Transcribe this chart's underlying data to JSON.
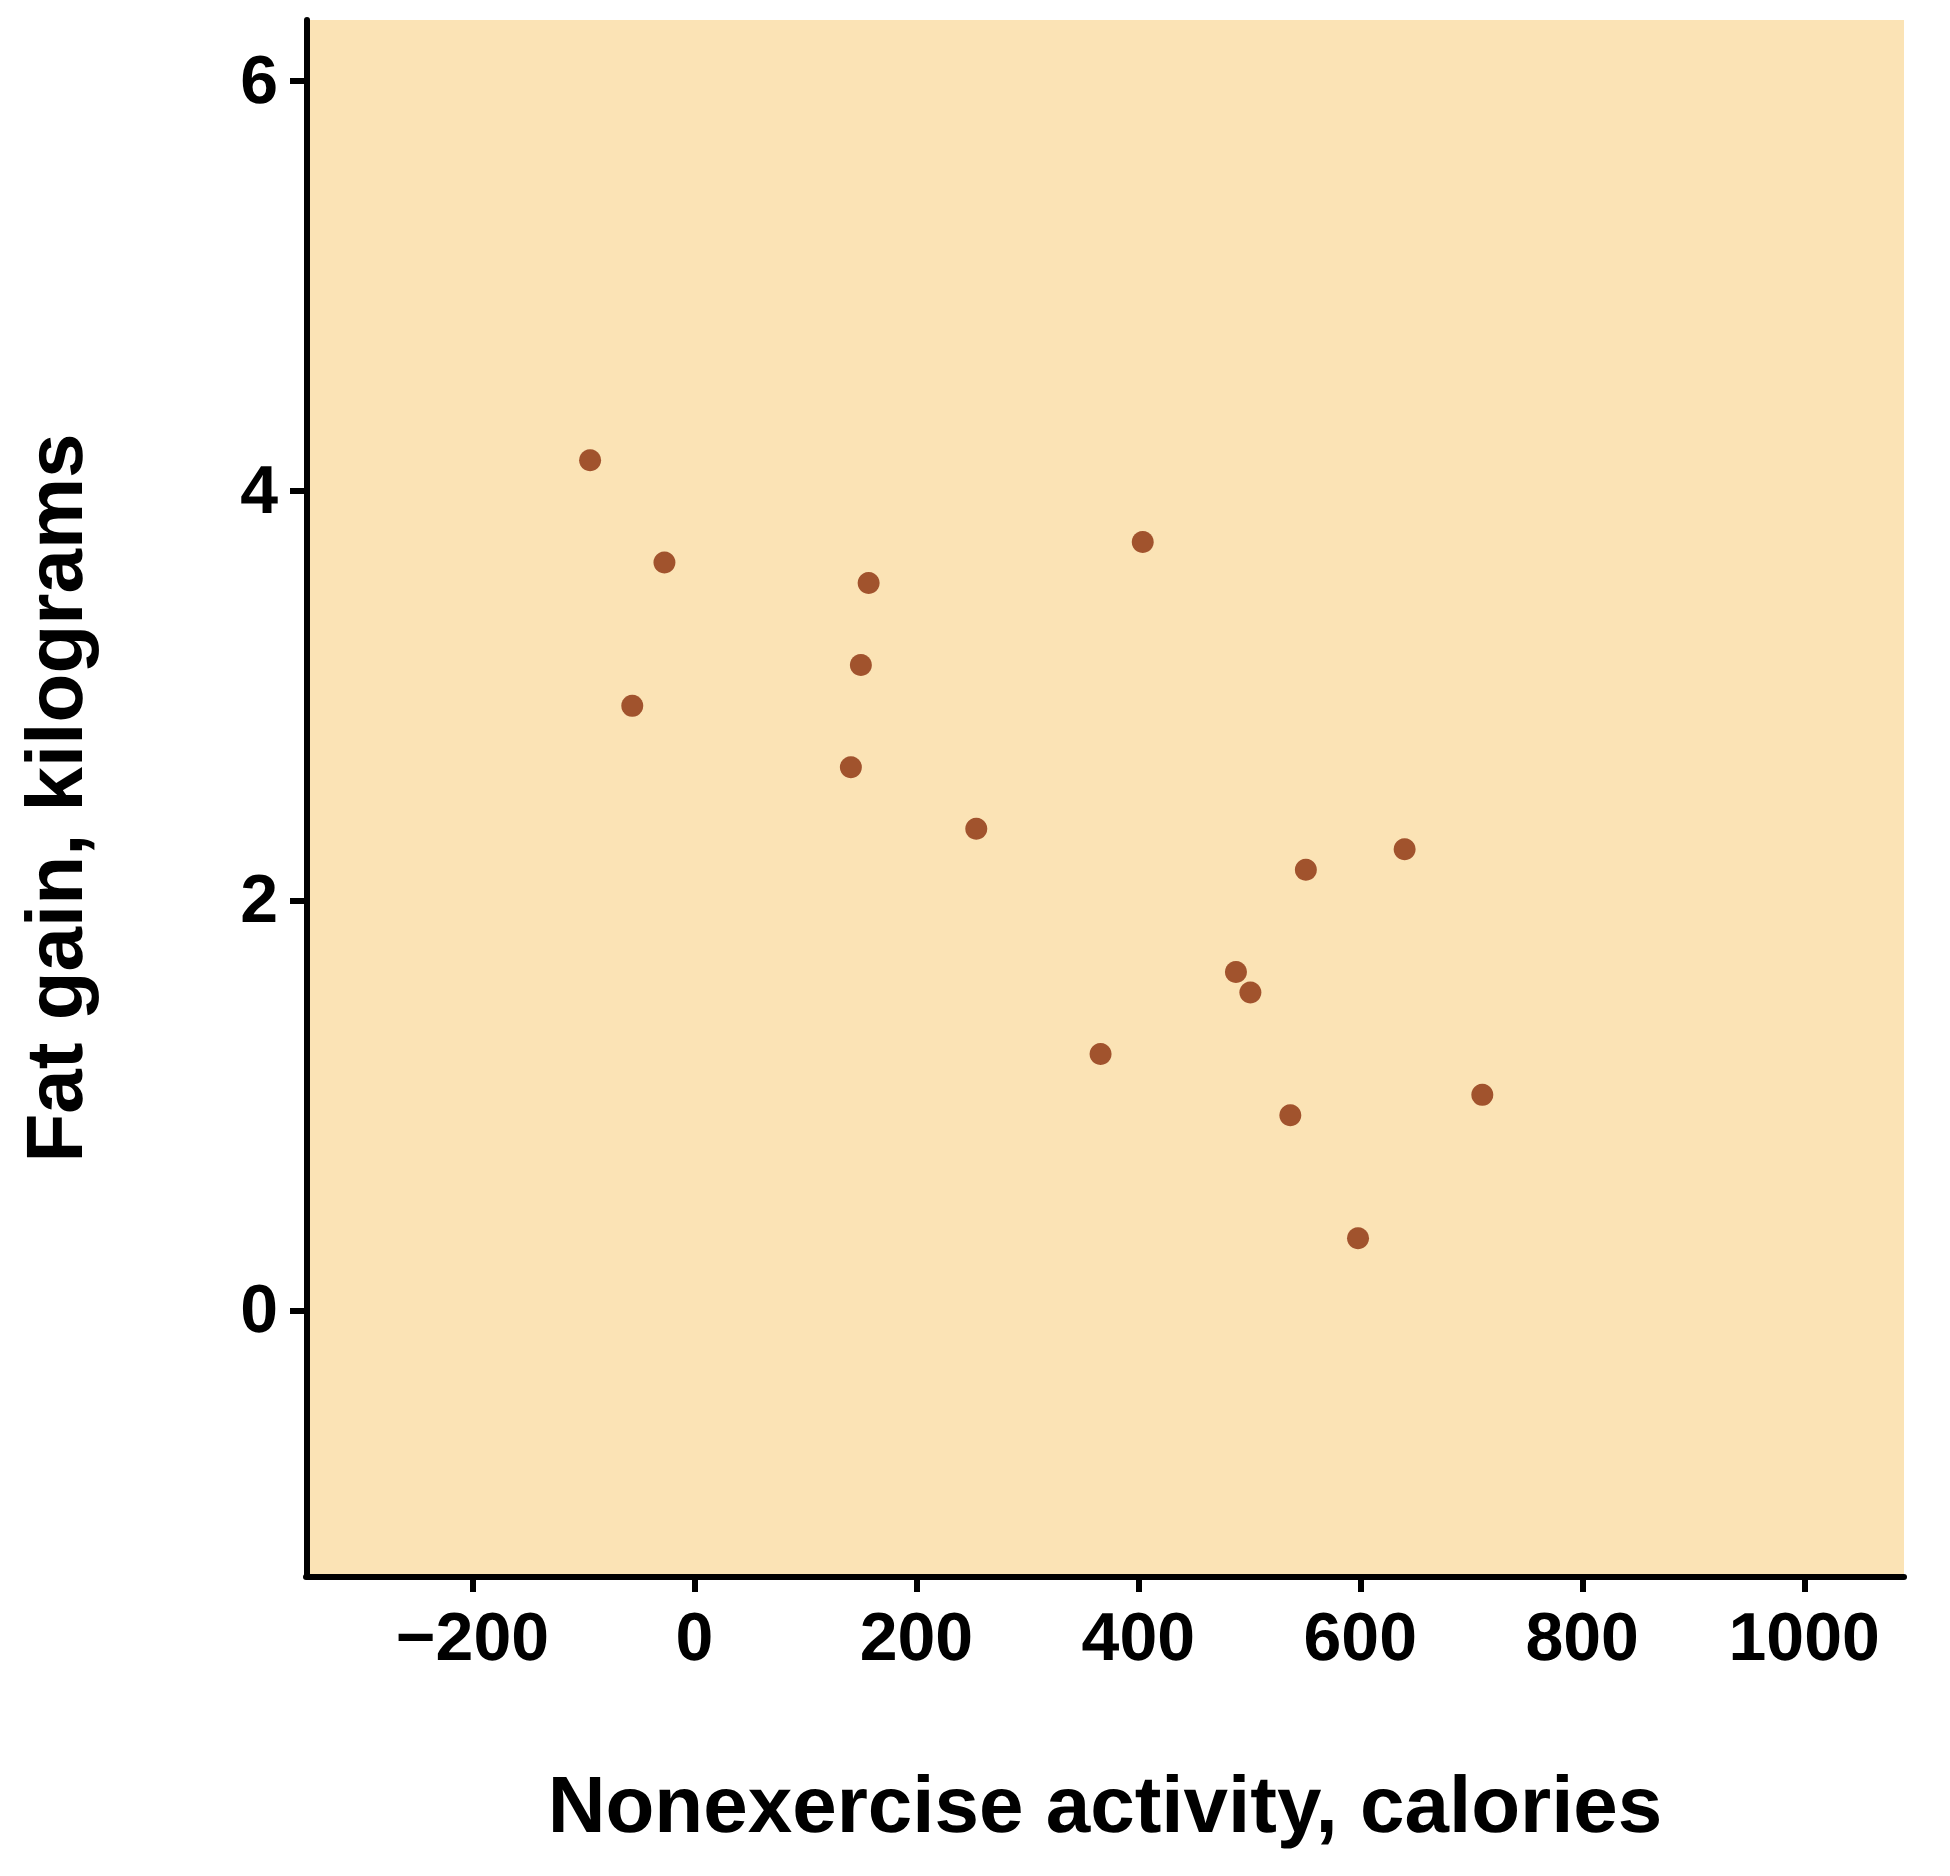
{
  "chart_data": {
    "type": "scatter",
    "xlabel": "Nonexercise activity, calories",
    "ylabel": "Fat gain, kilograms",
    "x": [
      -94,
      -27,
      -56,
      157,
      150,
      141,
      254,
      404,
      366,
      488,
      501,
      551,
      640,
      537,
      598,
      710
    ],
    "series": [
      {
        "color": "#8b2e0b",
        "values": [
          4.15,
          3.65,
          2.95,
          3.55,
          3.15,
          2.65,
          2.35,
          3.75,
          1.25,
          1.65,
          1.55,
          2.15,
          2.25,
          0.95,
          0.35,
          1.05
        ]
      }
    ],
    "xlim": [
      -350,
      1090
    ],
    "ylim": [
      -1.3,
      6.3
    ],
    "xticks": [
      {
        "value": -200,
        "label": "−200"
      },
      0,
      200,
      400,
      600,
      800,
      1000
    ],
    "yticks": [
      0,
      2,
      4,
      6
    ],
    "grid": false,
    "marker": "circle"
  }
}
